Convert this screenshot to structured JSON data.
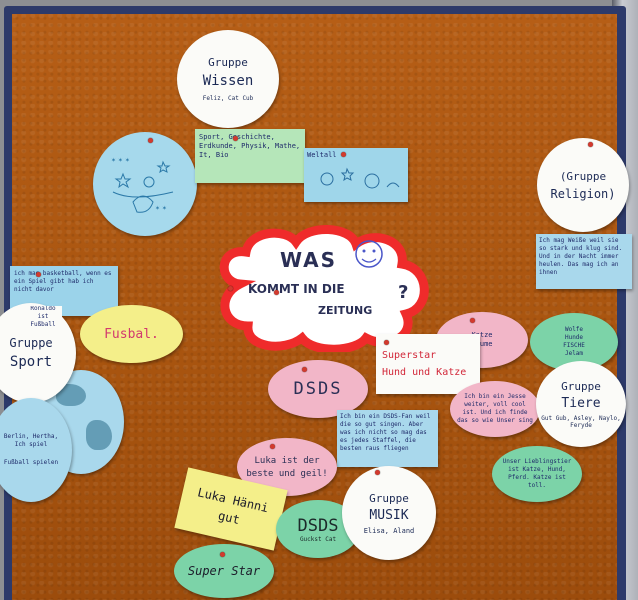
{
  "board": {
    "gruppe_wissen": {
      "title_1": "Gruppe",
      "title_2": "Wissen",
      "members": "Feliz, Cat Cub"
    },
    "wissen_topics": "Sport, Geschichte, Erdkunde, Physik, Mathe, It, Bio",
    "weltall_label": "Weltall",
    "gruppe_religion": {
      "title_1": "(Gruppe",
      "title_2": "Religion)"
    },
    "religion_text": "Ich mag Weiße weil sie so stark und klug sind. Und in der Nacht immer heulen. Das mag ich an ihnen",
    "basketball_note": "ich mag basketball, wenn es ein Spiel gibt hab ich nicht davor",
    "gruppe_sport": {
      "title_1": "Gruppe",
      "title_2": "Sport"
    },
    "fussball_label": "Fusbal.",
    "sport_note_small": "Ronaldo ist Fußball",
    "berlin_note": "Berlin, Hertha, Ich spiel",
    "fussball_small": "Fußball spielen",
    "cloud": {
      "line_1": "WAS",
      "line_2": "KOMMT IN DIE",
      "line_3": "ZEITUNG",
      "question": "?"
    },
    "katze_blume": {
      "line_1": "Katze",
      "line_2": "Blume"
    },
    "wolfe_note": {
      "line_1": "Wolfe",
      "line_2": "Hunde",
      "line_3": "FISCHE",
      "line_4": "Jelam"
    },
    "dsds_label": "DSDS",
    "superstar_card": {
      "line_1": "Superstar",
      "line_2": "Hund und Katze"
    },
    "tier_note": "Ich bin ein Jesse weiter, voll cool ist. Und ich finde das so wie Unser sing",
    "gruppe_tiere": {
      "title_1": "Gruppe",
      "title_2": "Tiere",
      "members": "Gut Gub, Asley, Naylo, Feryde"
    },
    "dsds_fan_note": "Ich bin ein DSDS-Fan weil die so gut singen. Aber was ich nicht so mag das es jedes Staffel, die besten raus fliegen",
    "luka_oval": {
      "line_1": "Luka ist der",
      "line_2": "beste und geil!"
    },
    "tiere_green_note": "Unser Lieblingstier ist Katze, Hund, Pferd. Katze ist toll.",
    "luka_card": {
      "line_1": "Luka Hänni",
      "line_2": "gut"
    },
    "dsds_green": "DSDS",
    "dsds_green_small": "Guckst Cat",
    "gruppe_musik": {
      "title_1": "Gruppe",
      "title_2": "MUSIK",
      "members": "Elisa, Aland"
    },
    "superstar_oval": "Super Star"
  }
}
